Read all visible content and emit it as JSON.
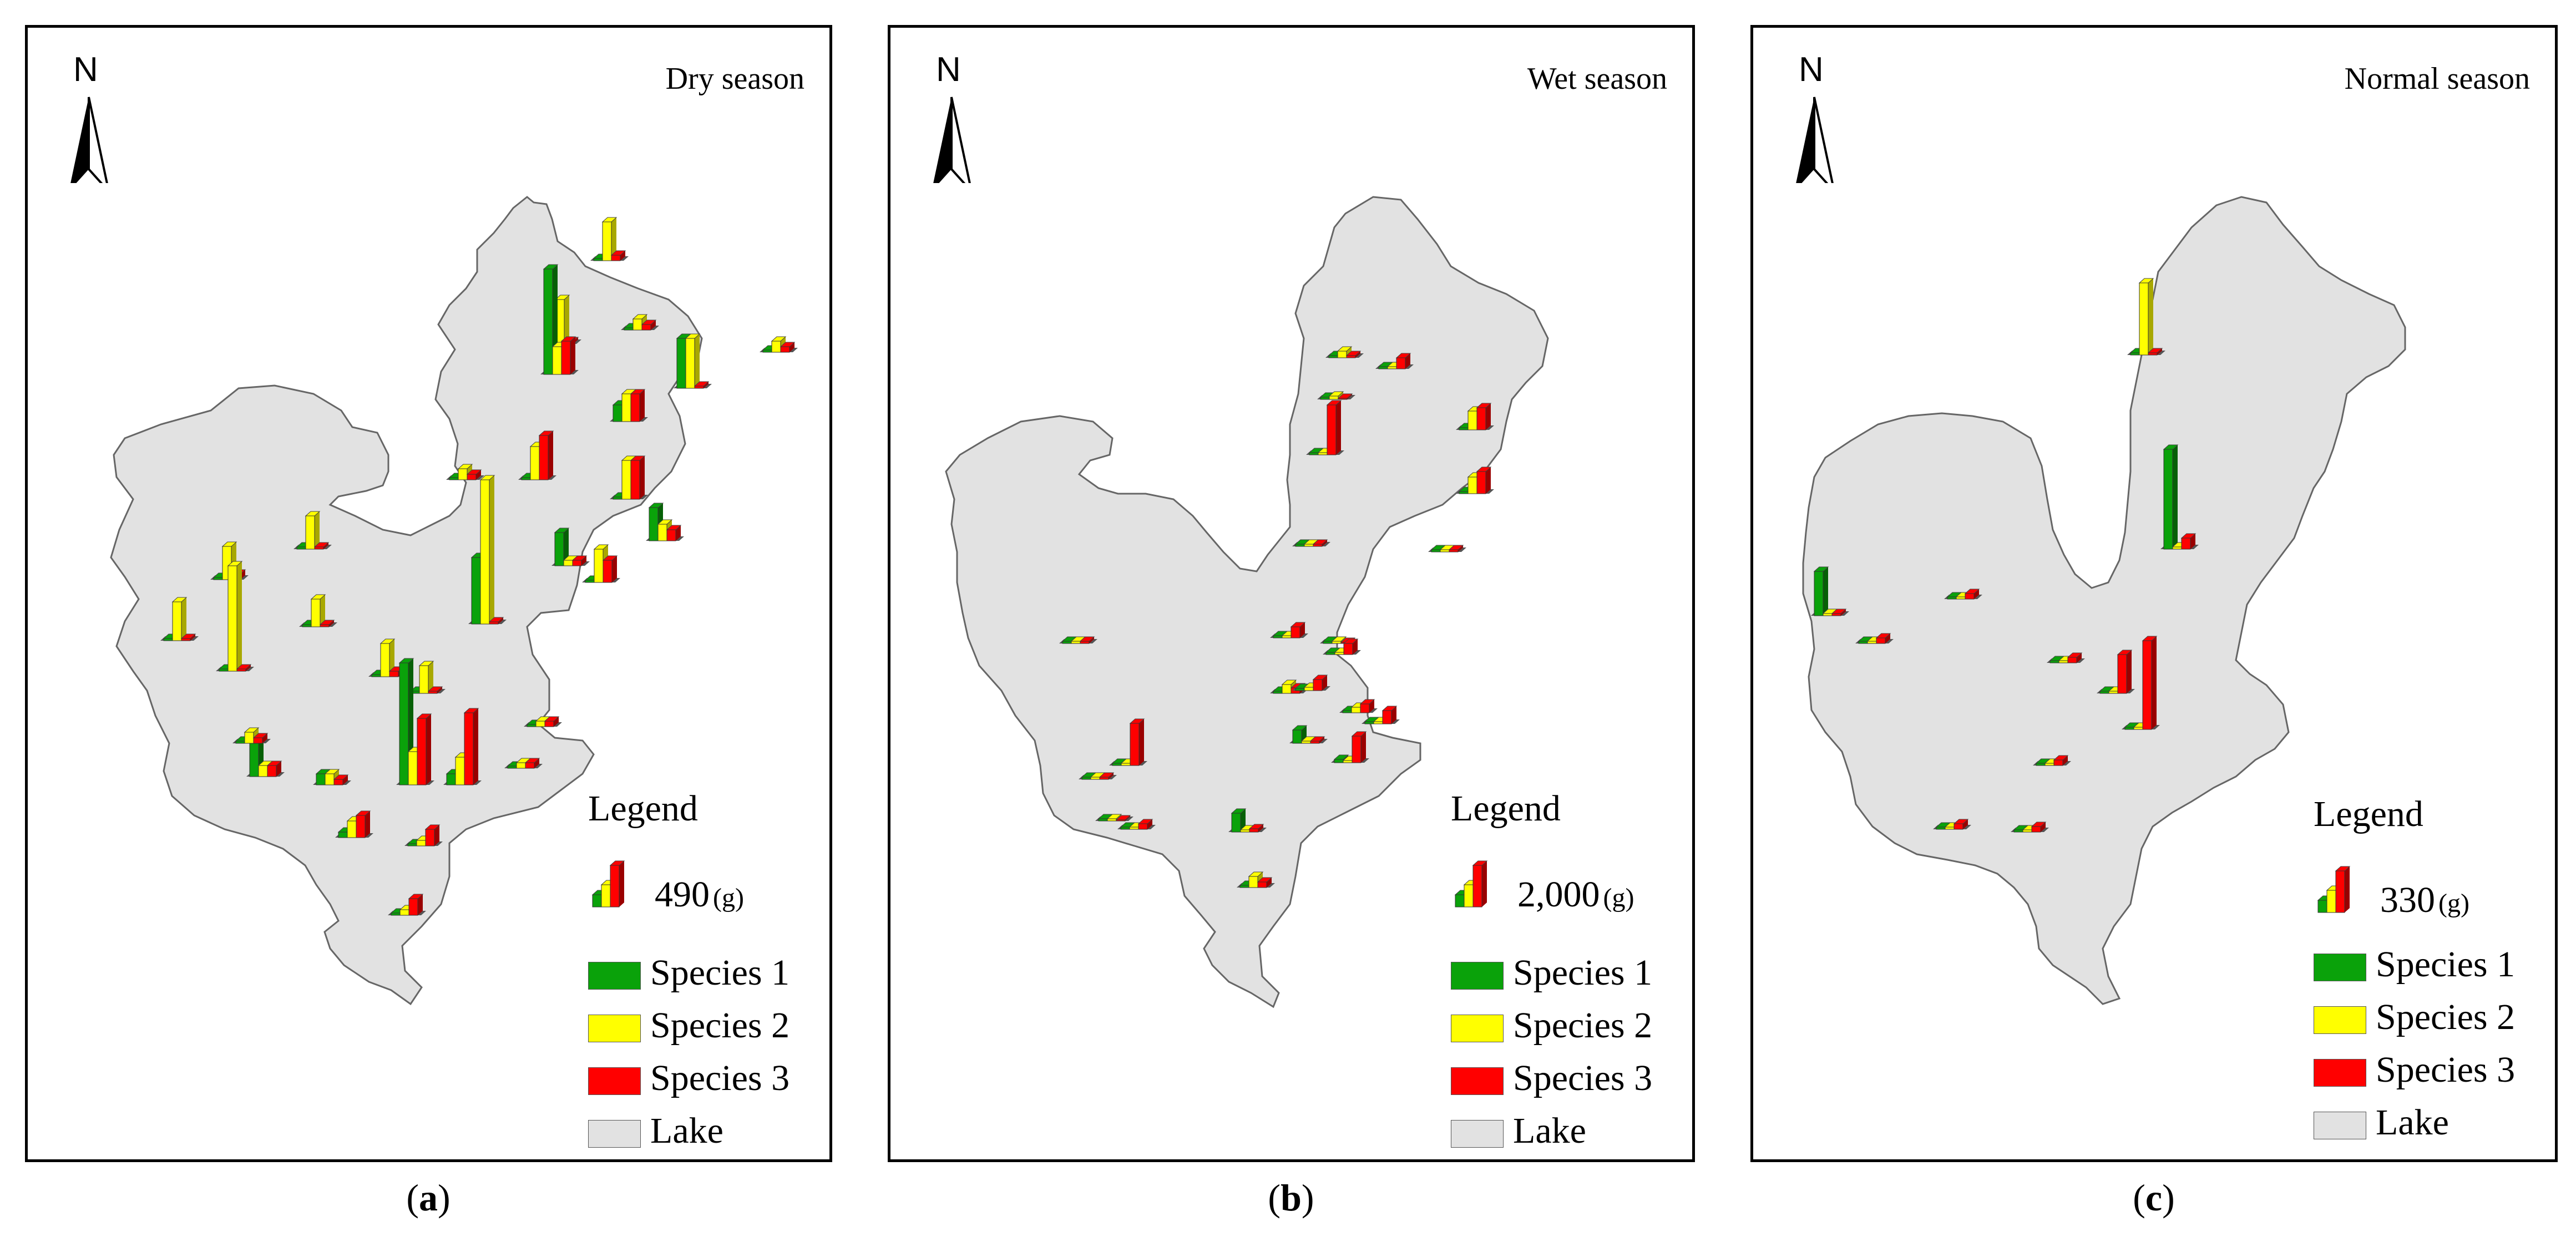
{
  "colors": {
    "species1": "#0aa20a",
    "species2": "#ffff00",
    "species3": "#ff0000",
    "lake": "#e2e2e2"
  },
  "legend_labels": {
    "title": "Legend",
    "species1": "Species 1",
    "species2": "Species 2",
    "species3": "Species 3",
    "lake": "Lake"
  },
  "north_label": "N",
  "panels": [
    {
      "id": "a",
      "season": "Dry season",
      "scale_value": "490",
      "scale_unit": "(g)",
      "caption_open": "(",
      "caption_letter": "a",
      "caption_close": ")"
    },
    {
      "id": "b",
      "season": "Wet season",
      "scale_value": "2,000",
      "scale_unit": "(g)",
      "caption_open": "(",
      "caption_letter": "b",
      "caption_close": ")"
    },
    {
      "id": "c",
      "season": "Normal season",
      "scale_value": "330",
      "scale_unit": "(g)",
      "caption_open": "(",
      "caption_letter": "c",
      "caption_close": ")"
    }
  ],
  "sites": {
    "a": [
      {
        "s": [
          0,
          0.35,
          0.05
        ]
      },
      {
        "s": [
          0,
          0.4,
          0
        ]
      },
      {
        "s": [
          0.95,
          0.25,
          0.3
        ]
      },
      {
        "s": [
          0,
          0.1,
          0.05
        ]
      },
      {
        "s": [
          0,
          0.1,
          0.05
        ]
      },
      {
        "s": [
          0.45,
          0.45,
          0
        ]
      },
      {
        "s": [
          0.15,
          0.25,
          0.25
        ]
      },
      {
        "s": [
          0,
          0.35,
          0.35
        ]
      },
      {
        "s": [
          0,
          0.1,
          0.05
        ]
      },
      {
        "s": [
          0,
          0.3,
          0.4
        ]
      },
      {
        "s": [
          0,
          0.3,
          0.2
        ]
      },
      {
        "s": [
          0.3,
          0.15,
          0.1
        ]
      },
      {
        "s": [
          0.3,
          0.05,
          0.05
        ]
      },
      {
        "s": [
          0,
          0.35,
          0
        ]
      },
      {
        "s": [
          0,
          0.3,
          0.05
        ]
      },
      {
        "s": [
          0,
          0.95,
          0
        ]
      },
      {
        "s": [
          0,
          0.3,
          0
        ]
      },
      {
        "s": [
          0,
          0.25,
          0
        ]
      },
      {
        "s": [
          0.6,
          1.3,
          0
        ]
      },
      {
        "s": [
          0,
          0.3,
          0.05
        ]
      },
      {
        "s": [
          0,
          0.25,
          0
        ]
      },
      {
        "s": [
          1.1,
          0.3,
          0.6
        ]
      },
      {
        "s": [
          0.1,
          0.25,
          0.65
        ]
      },
      {
        "s": [
          0,
          0.05,
          0.05
        ]
      },
      {
        "s": [
          0,
          0.05,
          0.05
        ]
      },
      {
        "s": [
          0.3,
          0.1,
          0.1
        ]
      },
      {
        "s": [
          0,
          0.1,
          0.05
        ]
      },
      {
        "s": [
          0.1,
          0.1,
          0.05
        ]
      },
      {
        "s": [
          0.05,
          0.15,
          0.2
        ]
      },
      {
        "s": [
          0,
          0.05,
          0.15
        ]
      },
      {
        "s": [
          0,
          0.05,
          0.15
        ]
      }
    ],
    "b": [
      {
        "s": [
          0,
          0.06,
          0
        ]
      },
      {
        "s": [
          0,
          0.02,
          0.45
        ]
      },
      {
        "s": [
          0,
          0.02,
          0.1
        ]
      },
      {
        "s": [
          0,
          0.03,
          0.01
        ]
      },
      {
        "s": [
          0,
          0.17,
          0.2
        ]
      },
      {
        "s": [
          0,
          0.15,
          0.2
        ]
      },
      {
        "s": [
          0,
          0.02,
          0
        ]
      },
      {
        "s": [
          0,
          0.02,
          0
        ]
      },
      {
        "s": [
          0,
          0.02,
          0.01
        ]
      },
      {
        "s": [
          0,
          0.02,
          0.1
        ]
      },
      {
        "s": [
          0,
          0.02,
          0
        ]
      },
      {
        "s": [
          0,
          0.02,
          0.1
        ]
      },
      {
        "s": [
          0,
          0.08,
          0.05
        ]
      },
      {
        "s": [
          0.02,
          0.03,
          0.1
        ]
      },
      {
        "s": [
          0,
          0.05,
          0.08
        ]
      },
      {
        "s": [
          0.12,
          0.02,
          0.02
        ]
      },
      {
        "s": [
          0,
          0.02,
          0.12
        ]
      },
      {
        "s": [
          0,
          0.02,
          0
        ]
      },
      {
        "s": [
          0.03,
          0.02,
          0.24
        ]
      },
      {
        "s": [
          0,
          0.02,
          0.38
        ]
      },
      {
        "s": [
          0,
          0.02,
          0.01
        ]
      },
      {
        "s": [
          0.02,
          0.02,
          0.05
        ]
      },
      {
        "s": [
          0.17,
          0.02,
          0.03
        ]
      },
      {
        "s": [
          0,
          0.1,
          0.05
        ]
      }
    ],
    "c": [
      {
        "s": [
          0,
          0.65,
          0
        ]
      },
      {
        "s": [
          0.9,
          0,
          0.1
        ]
      },
      {
        "s": [
          0.4,
          0,
          0
        ]
      },
      {
        "s": [
          0,
          0,
          0.05
        ]
      },
      {
        "s": [
          0,
          0,
          0.05
        ]
      },
      {
        "s": [
          0,
          0,
          0.05
        ]
      },
      {
        "s": [
          0,
          0,
          0.35
        ]
      },
      {
        "s": [
          0,
          0,
          0.8
        ]
      },
      {
        "s": [
          0,
          0,
          0.05
        ]
      },
      {
        "s": [
          0,
          0,
          0.05
        ]
      },
      {
        "s": [
          0,
          0,
          0.05
        ]
      }
    ]
  }
}
